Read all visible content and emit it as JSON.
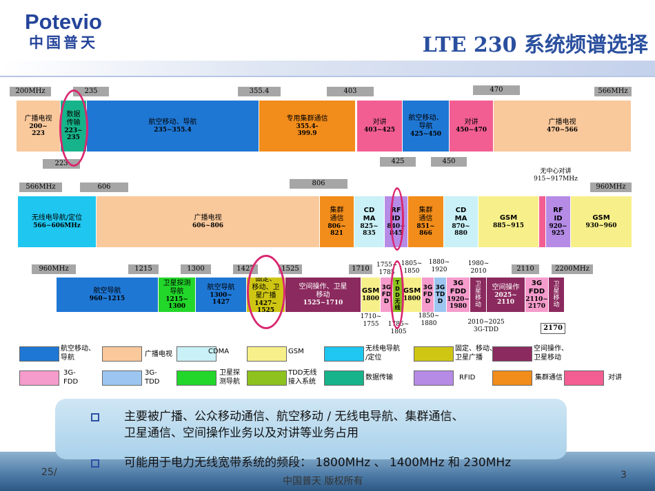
{
  "header": {
    "logo_en": "Potevio",
    "logo_cn": "中国普天",
    "title": "LTE 230 系统频谱选择"
  },
  "row1": {
    "edge_tags": {
      "left": "200MHz",
      "right": "566MHz"
    },
    "tags_top": [
      "235",
      "355.4",
      "403",
      "470"
    ],
    "tags_bottom": [
      "223",
      "425",
      "450"
    ],
    "segments": [
      {
        "name": "广播电视",
        "range": "200~\n223",
        "color": "#f9c89b"
      },
      {
        "name": "数据\n传输",
        "range": "223~\n235",
        "color": "#17b38a"
      },
      {
        "name": "航空移动、导航",
        "range": "235~355.4",
        "color": "#1f77d4"
      },
      {
        "name": "专用集群通信",
        "range": "355.4-\n399.9",
        "color": "#f28c1a"
      },
      {
        "name": "",
        "range": "",
        "color": "#ffffff"
      },
      {
        "name": "对讲",
        "range": "403~425",
        "color": "#f25e92"
      },
      {
        "name": "航空移动、\n导航",
        "range": "425~450",
        "color": "#1f77d4"
      },
      {
        "name": "对讲",
        "range": "450~470",
        "color": "#f25e92"
      },
      {
        "name": "广播电视",
        "range": "470~566",
        "color": "#f9c89b"
      }
    ]
  },
  "row2": {
    "edge_tags": {
      "left": "566MHz",
      "right": "960MHz"
    },
    "tags_top": [
      "606",
      "806"
    ],
    "note_top": "无中心对讲\n915~917MHz",
    "segments": [
      {
        "name": "无线电导航/定位",
        "range": "566~606MHz",
        "color": "#1fc6ef"
      },
      {
        "name": "广播电视",
        "range": "606~806",
        "color": "#f9c89b"
      },
      {
        "name": "集群\n通信",
        "range": "806~\n821",
        "color": "#f28c1a"
      },
      {
        "name": "CD\nMA",
        "range": "825~\n835",
        "color": "#c9f1f7"
      },
      {
        "name": "RF\nID",
        "range": "840~\n845",
        "color": "#b58be6"
      },
      {
        "name": "集群\n通信",
        "range": "851~\n866",
        "color": "#f28c1a"
      },
      {
        "name": "CD\nMA",
        "range": "870~\n880",
        "color": "#c9f1f7"
      },
      {
        "name": "GSM",
        "range": "885~915",
        "color": "#f7f08a"
      },
      {
        "name": "",
        "range": "",
        "color": "#f25e92"
      },
      {
        "name": "RF\nID",
        "range": "920~\n925",
        "color": "#b58be6"
      },
      {
        "name": "GSM",
        "range": "930~960",
        "color": "#f7f08a"
      }
    ]
  },
  "row3": {
    "edge_tags": {
      "left": "960MHz",
      "right": "2200MHz"
    },
    "tags_top": [
      "1215",
      "1300",
      "1427",
      "1525",
      "1710",
      "1755~\n1785",
      "1805~\n1850",
      "1880~\n1920",
      "1980~\n2010",
      "2110"
    ],
    "tags_bottom": [
      "1710~\n1755",
      "1785~\n1805",
      "1850~\n1880",
      "2010~2025\n3G-TDD",
      "2170"
    ],
    "segments": [
      {
        "name": "航空导航",
        "range": "960~1215",
        "color": "#1f77d4"
      },
      {
        "name": "卫星探测\n导航",
        "range": "1215~\n1300",
        "color": "#22d62a"
      },
      {
        "name": "航空导航",
        "range": "1300~\n1427",
        "color": "#1f77d4"
      },
      {
        "name": "固定、\n移动、卫\n星广播",
        "range": "1427~\n1525",
        "color": "#cfc614"
      },
      {
        "name": "空间操作、卫星\n移动",
        "range": "1525~1710",
        "color": "#8b2a5e"
      },
      {
        "name": "GSM",
        "range": "1800",
        "color": "#f7f08a"
      },
      {
        "name": "3G\nFD\nD",
        "range": "",
        "color": "#f59ccc"
      },
      {
        "name": "T\nD\nD\n无\n线",
        "range": "",
        "color": "#8dc21f"
      },
      {
        "name": "GSM",
        "range": "1800",
        "color": "#f7f08a"
      },
      {
        "name": "3G\nFD\nD",
        "range": "",
        "color": "#f59ccc"
      },
      {
        "name": "3G\nTD\nD",
        "range": "",
        "color": "#9cc6f0"
      },
      {
        "name": "3G\nFDD",
        "range": "1920~\n1980",
        "color": "#f59ccc"
      },
      {
        "name": "卫\n星\n移\n动",
        "range": "",
        "color": "#8b2a5e"
      },
      {
        "name": "空间操作",
        "range": "2025~\n2110",
        "color": "#8b2a5e"
      },
      {
        "name": "3G\nFDD",
        "range": "2110~\n2170",
        "color": "#f59ccc"
      },
      {
        "name": "卫\n星\n移\n动",
        "range": "",
        "color": "#8b2a5e"
      }
    ]
  },
  "legend": [
    {
      "label": "航空移动、\n导航",
      "color": "#1f77d4"
    },
    {
      "label": "广播电视",
      "color": "#f9c89b"
    },
    {
      "label": "CDMA",
      "color": "#c9f1f7"
    },
    {
      "label": "GSM",
      "color": "#f7f08a"
    },
    {
      "label": "无线电导航\n/定位",
      "color": "#1fc6ef"
    },
    {
      "label": "固定、移动、\n卫星广播",
      "color": "#cfc614"
    },
    {
      "label": "空间操作、\n卫星移动",
      "color": "#8b2a5e"
    },
    {
      "label": "3G-\nFDD",
      "color": "#f59ccc"
    },
    {
      "label": "3G-\nTDD",
      "color": "#9cc6f0"
    },
    {
      "label": "卫星探\n测导航",
      "color": "#22d62a"
    },
    {
      "label": "TDD无线\n接入系统",
      "color": "#8dc21f"
    },
    {
      "label": "数据传输",
      "color": "#17b38a"
    },
    {
      "label": "RFID",
      "color": "#b58be6"
    },
    {
      "label": "集群通信",
      "color": "#f28c1a"
    },
    {
      "label": "对讲",
      "color": "#f25e92"
    }
  ],
  "notes": [
    "主要被广播、公众移动通信、航空移动 / 无线电导航、集群通信、",
    "卫星通信、空间操作业务以及对讲等业务占用",
    "可能用于电力无线宽带系统的频段： 1800MHz 、 1400MHz 和 230MHz"
  ],
  "footer": {
    "date": "25/",
    "copyright": "中国普天 版权所有",
    "page": "3"
  }
}
